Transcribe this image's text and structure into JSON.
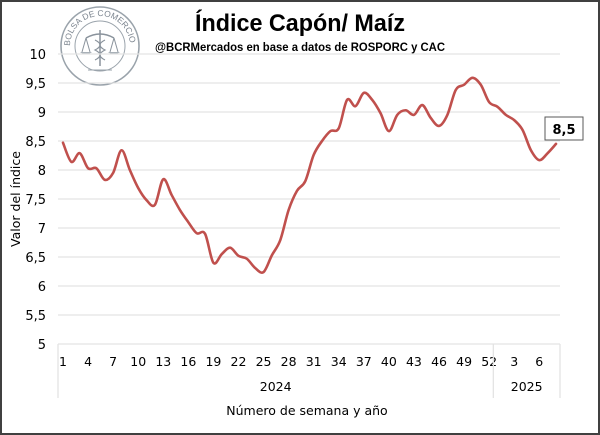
{
  "chart_data": {
    "type": "line",
    "title": "Índice Capón/ Maíz",
    "subtitle": "@BCRMercados  en base a datos de ROSPORC y CAC",
    "xlabel": "Número de semana y año",
    "ylabel": "Valor del índice",
    "ylim": [
      5,
      10
    ],
    "y_ticks": [
      "5",
      "5,5",
      "6",
      "6,5",
      "7",
      "7,5",
      "8",
      "8,5",
      "9",
      "9,5",
      "10"
    ],
    "x_tick_labels": [
      "1",
      "4",
      "7",
      "10",
      "13",
      "16",
      "19",
      "22",
      "25",
      "28",
      "31",
      "34",
      "37",
      "40",
      "43",
      "46",
      "49",
      "52",
      "3",
      "6"
    ],
    "year_groups": [
      {
        "label": "2024",
        "weeks": 52
      },
      {
        "label": "2025",
        "weeks": 8
      }
    ],
    "grid": true,
    "series": [
      {
        "name": "Índice Capón/ Maíz",
        "color": "#C0504D",
        "values": [
          8.47,
          8.14,
          8.29,
          8.03,
          8.03,
          7.83,
          7.95,
          8.34,
          8.0,
          7.69,
          7.48,
          7.4,
          7.84,
          7.57,
          7.31,
          7.1,
          6.91,
          6.9,
          6.4,
          6.55,
          6.66,
          6.52,
          6.47,
          6.31,
          6.24,
          6.53,
          6.79,
          7.31,
          7.64,
          7.81,
          8.26,
          8.5,
          8.67,
          8.72,
          9.21,
          9.1,
          9.33,
          9.21,
          8.98,
          8.67,
          8.95,
          9.03,
          8.95,
          9.12,
          8.9,
          8.76,
          8.95,
          9.38,
          9.47,
          9.59,
          9.47,
          9.17,
          9.09,
          8.95,
          8.86,
          8.69,
          8.34,
          8.17,
          8.29,
          8.45
        ]
      }
    ],
    "annotations": [
      {
        "label": "8,5",
        "point": "last"
      }
    ]
  },
  "logo": {
    "text": "BOLSA DE COMERCIO DE ROSARIO"
  }
}
